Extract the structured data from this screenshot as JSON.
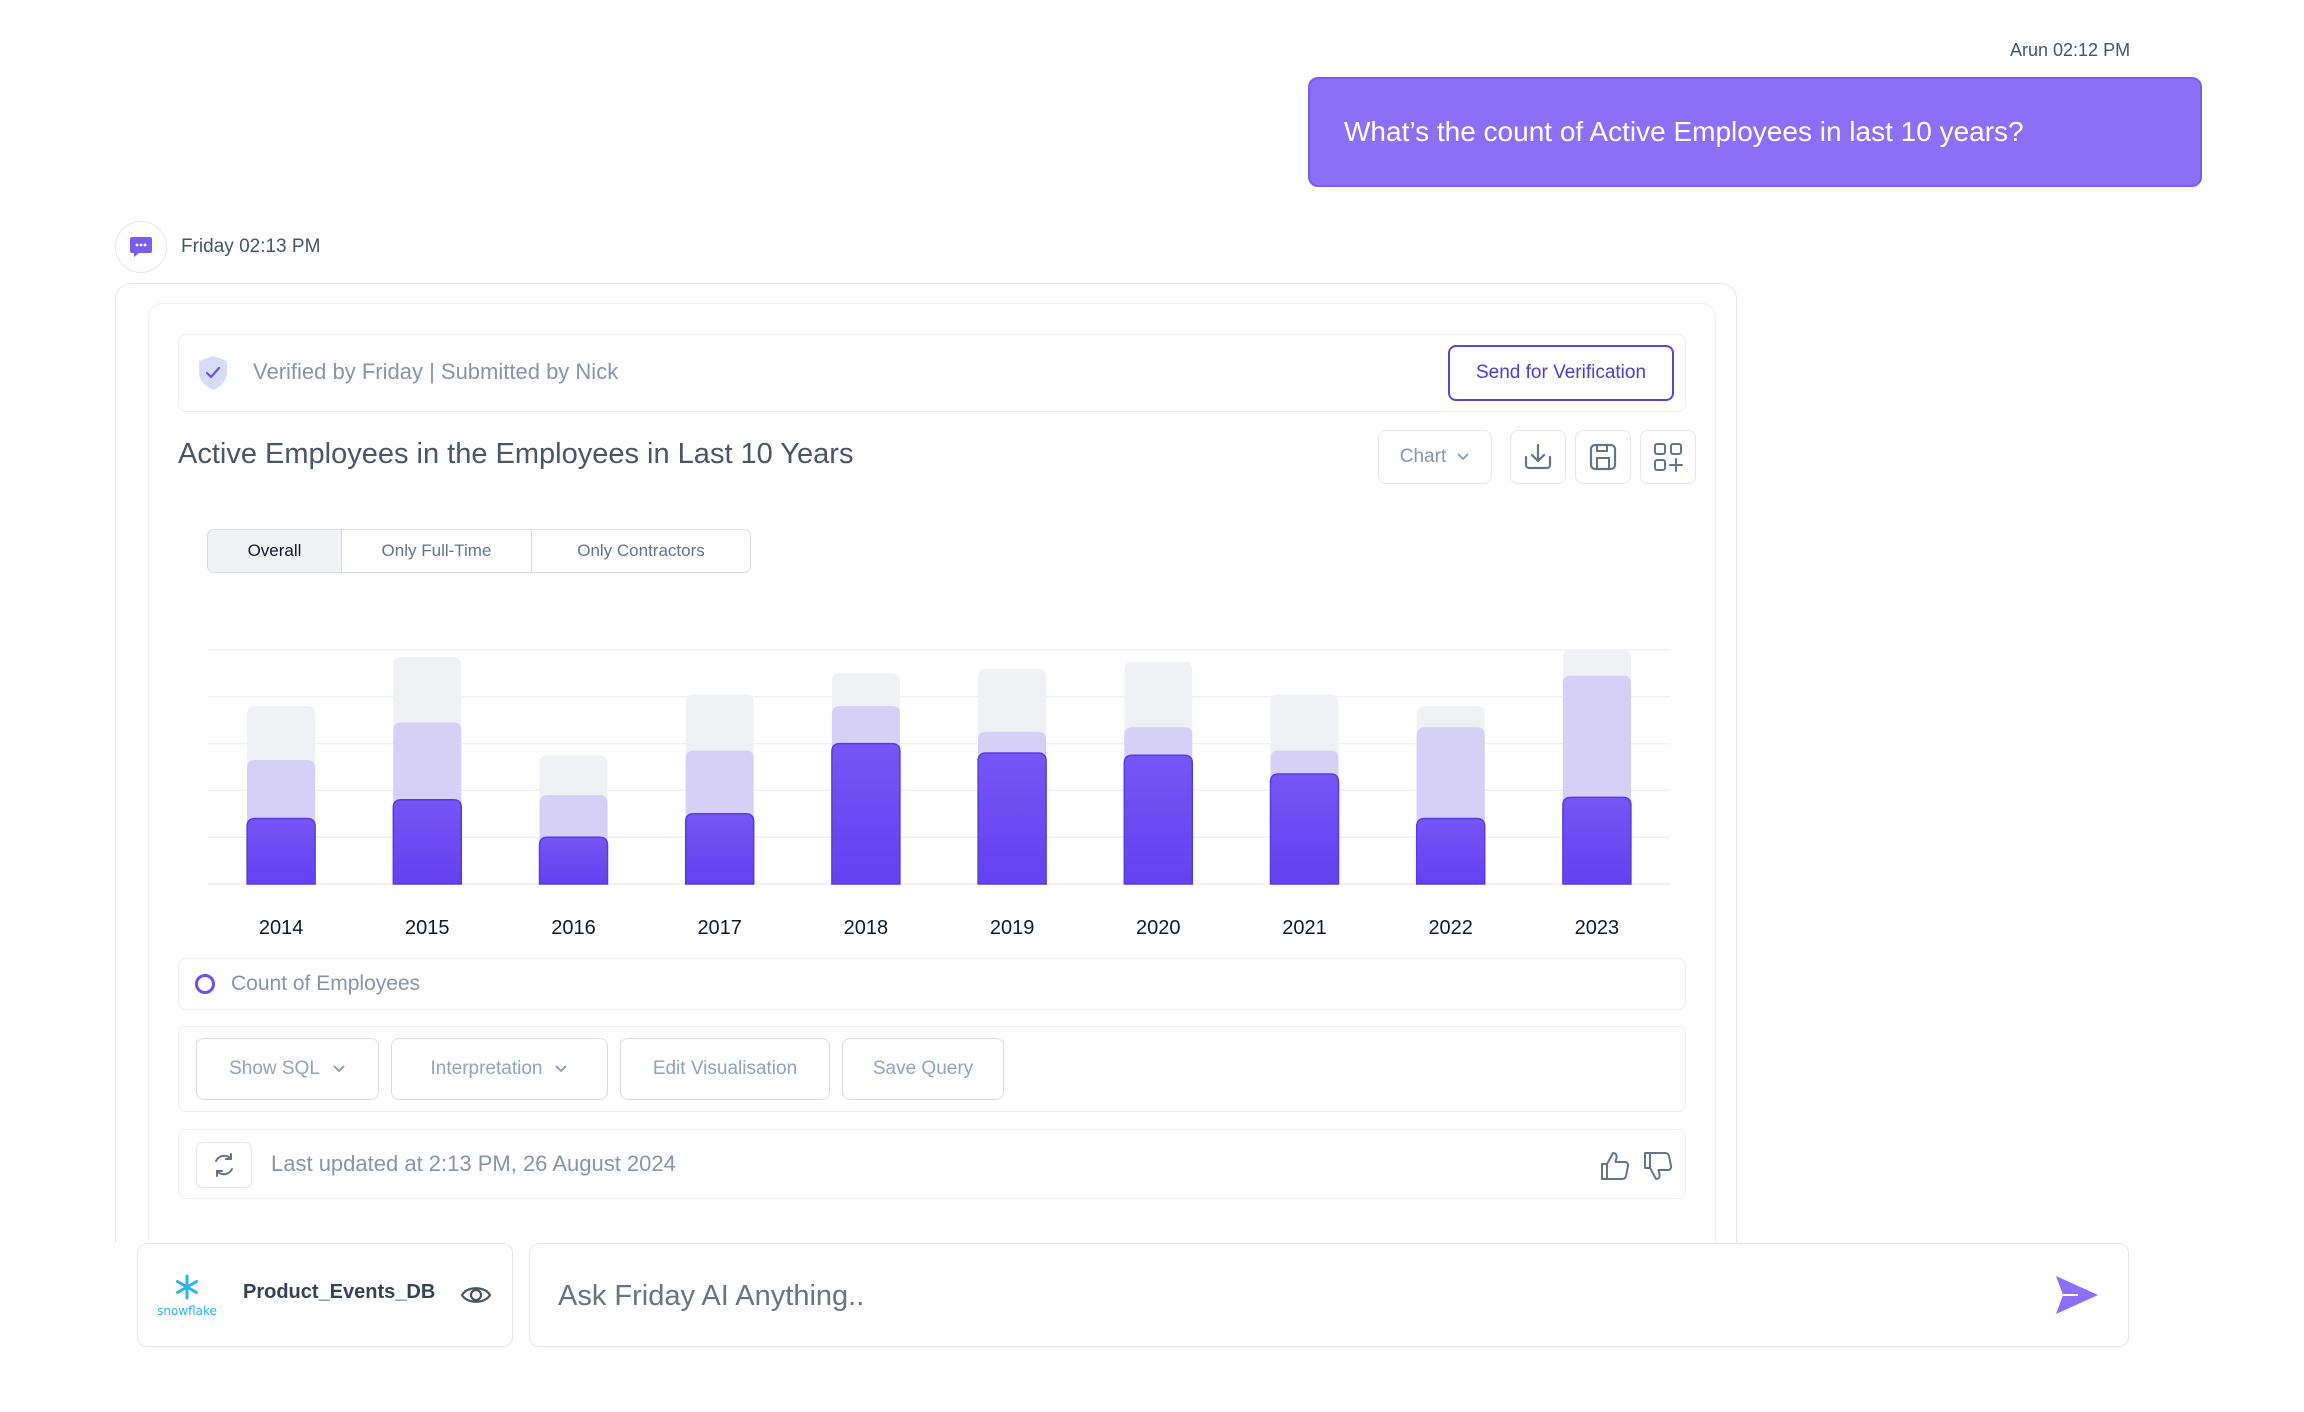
{
  "conversation": {
    "user_message": {
      "author_time": "Arun 02:12 PM",
      "text": "What’s the count of Active Employees in last 10 years?"
    },
    "bot_message": {
      "author_time": "Friday 02:13 PM"
    }
  },
  "card": {
    "verification_text": "Verified by Friday | Submitted by Nick",
    "send_verification_label": "Send for Verification",
    "title": "Active Employees in the Employees in Last 10 Years",
    "view_dropdown_label": "Chart",
    "tabs": [
      {
        "label": "Overall",
        "active": true
      },
      {
        "label": "Only Full-Time",
        "active": false
      },
      {
        "label": "Only Contractors",
        "active": false
      }
    ],
    "legend_label": "Count of Employees",
    "actions": {
      "show_sql": "Show SQL",
      "interpretation": "Interpretation",
      "edit_visualisation": "Edit Visualisation",
      "save_query": "Save Query"
    },
    "last_updated": "Last updated at 2:13 PM, 26 August 2024"
  },
  "chart_data": {
    "type": "bar",
    "categories": [
      "2014",
      "2015",
      "2016",
      "2017",
      "2018",
      "2019",
      "2020",
      "2021",
      "2022",
      "2023"
    ],
    "series": [
      {
        "name": "Count of Employees",
        "values": [
          28,
          36,
          20,
          30,
          60,
          56,
          55,
          47,
          28,
          37
        ]
      },
      {
        "values": [
          53,
          69,
          38,
          57,
          76,
          65,
          67,
          57,
          67,
          89
        ]
      },
      {
        "values": [
          76,
          97,
          55,
          81,
          90,
          92,
          95,
          81,
          76,
          100
        ]
      }
    ],
    "ylim": [
      0,
      100
    ],
    "grid": true,
    "colors": {
      "primary": "#6d4ef2",
      "secondary": "#d6cff6",
      "background": "#eff1f4"
    }
  },
  "bottom_bar": {
    "database_name": "Product_Events_DB",
    "database_brand": "snowflake",
    "ask_placeholder": "Ask Friday AI Anything.."
  },
  "colors": {
    "accent": "#8b6ff7",
    "accent_dark": "#5b44d9",
    "muted_text": "#8a94a6"
  }
}
